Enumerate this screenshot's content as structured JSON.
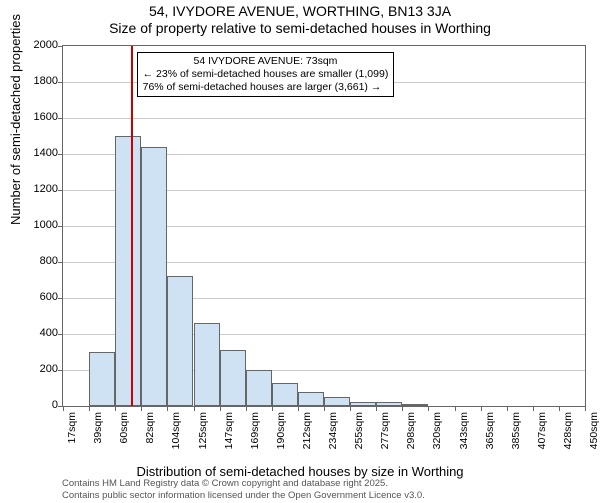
{
  "chart": {
    "type": "bar",
    "title_main": "54, IVYDORE AVENUE, WORTHING, BN13 3JA",
    "title_sub": "Size of property relative to semi-detached houses in Worthing",
    "title_fontsize": 14,
    "ylabel": "Number of semi-detached properties",
    "xlabel": "Distribution of semi-detached houses by size in Worthing",
    "axis_label_fontsize": 13,
    "ylim": [
      0,
      2000
    ],
    "ytick_step": 200,
    "yticks": [
      0,
      200,
      400,
      600,
      800,
      1000,
      1200,
      1400,
      1600,
      1800,
      2000
    ],
    "xtick_labels": [
      "17sqm",
      "39sqm",
      "60sqm",
      "82sqm",
      "104sqm",
      "125sqm",
      "147sqm",
      "169sqm",
      "190sqm",
      "212sqm",
      "234sqm",
      "255sqm",
      "277sqm",
      "298sqm",
      "320sqm",
      "343sqm",
      "365sqm",
      "385sqm",
      "407sqm",
      "428sqm",
      "450sqm"
    ],
    "bars": [
      0,
      300,
      1500,
      1440,
      720,
      460,
      310,
      200,
      130,
      80,
      50,
      20,
      20,
      10,
      0,
      0,
      0,
      0,
      0,
      0
    ],
    "bar_fill": "#cfe2f3",
    "bar_border": "#666666",
    "grid_color": "#cccccc",
    "axis_color": "#666666",
    "background_color": "#ffffff",
    "tick_fontsize": 11,
    "marker": {
      "value": 73,
      "color": "#cc0000",
      "line1": "54 IVYDORE AVENUE: 73sqm",
      "line2": "← 23% of semi-detached houses are smaller (1,099)",
      "line3": "76% of semi-detached houses are larger (3,661) →"
    },
    "footer_line1": "Contains HM Land Registry data © Crown copyright and database right 2025.",
    "footer_line2": "Contains public sector information licensed under the Open Government Licence v3.0."
  }
}
